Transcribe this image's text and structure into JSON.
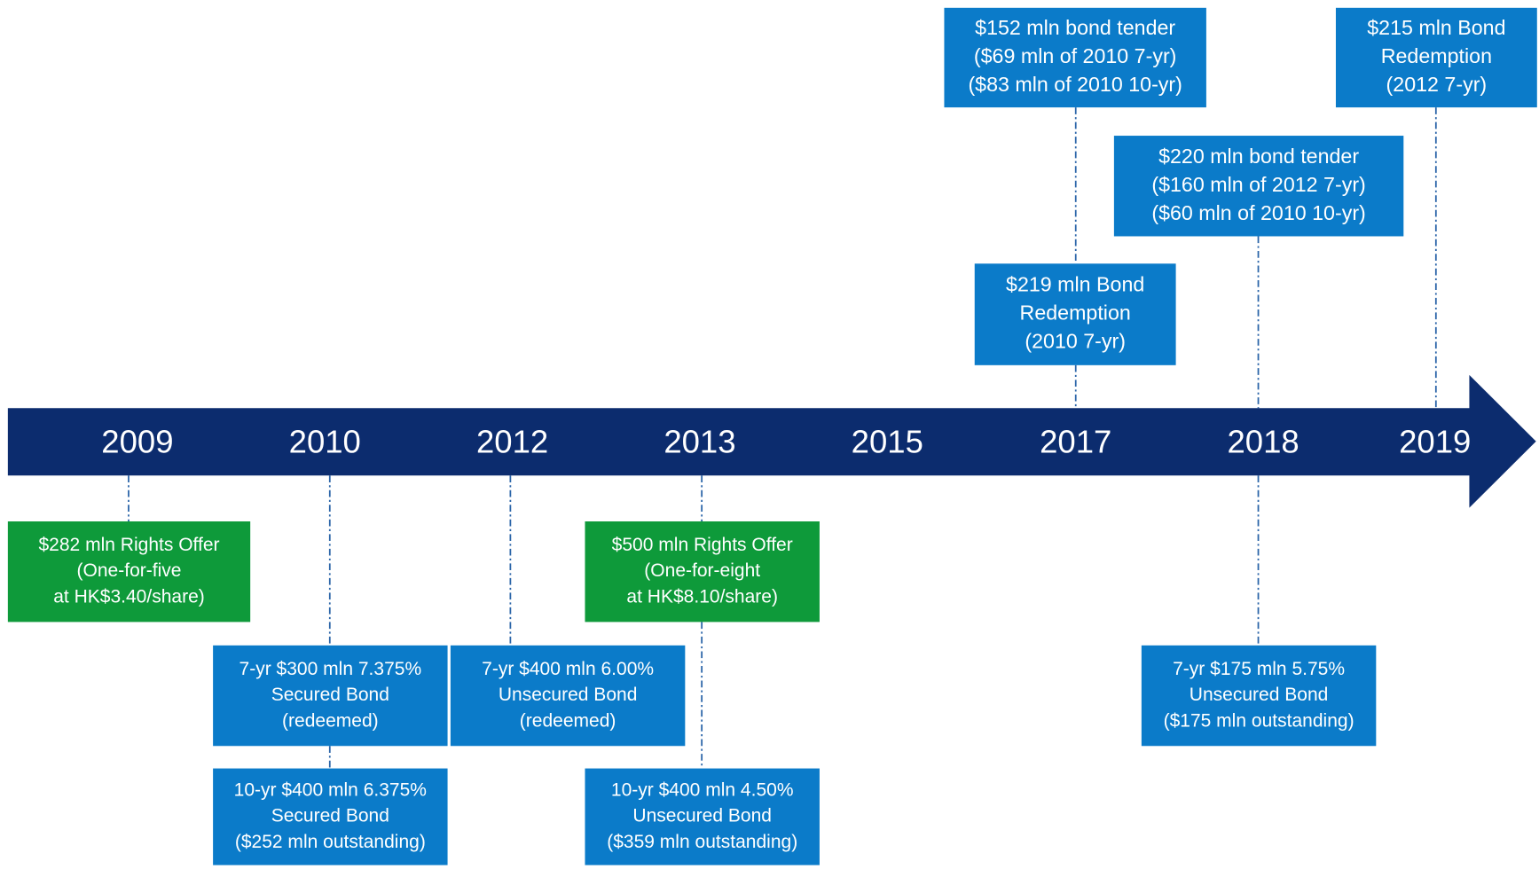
{
  "years": [
    "2009",
    "2010",
    "2012",
    "2013",
    "2015",
    "2017",
    "2018",
    "2019"
  ],
  "events": [
    {
      "lines": [
        "$282 mln Rights Offer",
        "(One-for-five",
        "at HK$3.40/share)"
      ],
      "color": "#0e9a3a"
    },
    {
      "lines": [
        "7-yr $300 mln 7.375%",
        "Secured Bond",
        "(redeemed)"
      ],
      "color": "#0b7bc9"
    },
    {
      "lines": [
        "10-yr $400 mln 6.375%",
        "Secured Bond",
        "($252 mln outstanding)"
      ],
      "color": "#0b7bc9"
    },
    {
      "lines": [
        "7-yr $400 mln 6.00%",
        "Unsecured Bond",
        "(redeemed)"
      ],
      "color": "#0b7bc9"
    },
    {
      "lines": [
        "$500 mln Rights Offer",
        "(One-for-eight",
        "at HK$8.10/share)"
      ],
      "color": "#0e9a3a"
    },
    {
      "lines": [
        "10-yr $400 mln 4.50%",
        "Unsecured Bond",
        "($359 mln outstanding)"
      ],
      "color": "#0b7bc9"
    },
    {
      "lines": [
        "7-yr $175 mln 5.75%",
        "Unsecured Bond",
        "($175 mln outstanding)"
      ],
      "color": "#0b7bc9"
    },
    {
      "lines": [
        "$219 mln Bond",
        "Redemption",
        "(2010 7-yr)"
      ],
      "color": "#0b7bc9"
    },
    {
      "lines": [
        "$152 mln bond tender",
        "($69 mln of 2010 7-yr)",
        "($83 mln of 2010 10-yr)"
      ],
      "color": "#0b7bc9"
    },
    {
      "lines": [
        "$220 mln bond tender",
        "($160 mln of 2012 7-yr)",
        "($60 mln of 2010 10-yr)"
      ],
      "color": "#0b7bc9"
    },
    {
      "lines": [
        "$215 mln Bond",
        "Redemption",
        "(2012 7-yr)"
      ],
      "color": "#0b7bc9"
    }
  ]
}
